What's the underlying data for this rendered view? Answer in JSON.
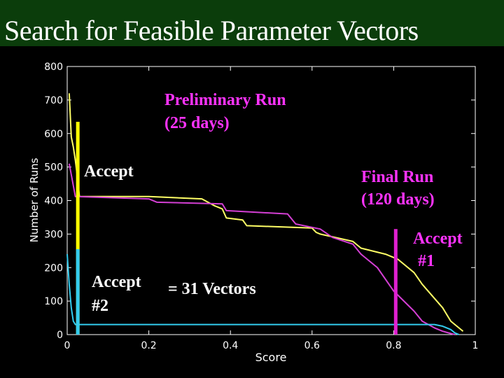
{
  "slide": {
    "title": "Search for Feasible Parameter Vectors"
  },
  "chart_data": {
    "type": "line",
    "xlabel": "Score",
    "ylabel": "Number of Runs",
    "xlim": [
      0,
      1
    ],
    "ylim": [
      0,
      800
    ],
    "x_ticks": [
      "0",
      "0.2",
      "0.4",
      "0.6",
      "0.8",
      "1"
    ],
    "y_ticks": [
      "0",
      "100",
      "200",
      "300",
      "400",
      "500",
      "600",
      "700",
      "800"
    ],
    "grid": false,
    "background": "#000000",
    "series": [
      {
        "color": "#ffff66",
        "x": [
          0.005,
          0.01,
          0.015,
          0.02,
          0.025,
          0.03,
          0.2,
          0.33,
          0.36,
          0.38,
          0.39,
          0.43,
          0.44,
          0.6,
          0.61,
          0.62,
          0.7,
          0.72,
          0.78,
          0.81,
          0.85,
          0.87,
          0.9,
          0.92,
          0.94,
          0.97
        ],
        "y": [
          720,
          590,
          560,
          520,
          470,
          412,
          412,
          405,
          385,
          375,
          348,
          342,
          325,
          318,
          305,
          300,
          278,
          258,
          240,
          225,
          185,
          150,
          108,
          80,
          40,
          10
        ]
      },
      {
        "color": "#d43fd4",
        "x": [
          0.005,
          0.02,
          0.2,
          0.22,
          0.38,
          0.39,
          0.54,
          0.56,
          0.62,
          0.65,
          0.7,
          0.72,
          0.76,
          0.8,
          0.85,
          0.87,
          0.9,
          0.92,
          0.95
        ],
        "y": [
          510,
          412,
          405,
          395,
          390,
          370,
          360,
          330,
          315,
          290,
          270,
          240,
          200,
          130,
          70,
          40,
          20,
          10,
          0
        ]
      },
      {
        "color": "#33ccee",
        "x": [
          0.0,
          0.005,
          0.01,
          0.015,
          0.02,
          0.9,
          0.92,
          0.94,
          0.95,
          0.96
        ],
        "y": [
          240,
          150,
          80,
          40,
          30,
          30,
          25,
          15,
          5,
          0
        ]
      }
    ],
    "threshold_bars": [
      {
        "label": "Accept",
        "x": 0.026,
        "y_top": 635,
        "color": "#ffff00"
      },
      {
        "label": "Accept #2",
        "x": 0.026,
        "y_top": 255,
        "color": "#33ccee"
      },
      {
        "label": "Accept #1",
        "x": 0.805,
        "y_top": 315,
        "color": "#e020d0"
      }
    ],
    "annotations": {
      "preliminary_1": "Preliminary Run",
      "preliminary_2": "(25 days)",
      "accept": "Accept",
      "final_1": "Final Run",
      "final_2": "(120 days)",
      "accept1_1": "Accept",
      "accept1_2": "#1",
      "accept2_1": "Accept",
      "accept2_2": "#2",
      "vectors": "= 31 Vectors"
    },
    "annotation_colors": {
      "preliminary": "#ff33ff",
      "accept": "#ffffff",
      "final": "#ff33ff",
      "accept1": "#ff33ff",
      "accept2": "#ffffff",
      "vectors": "#ffffff"
    }
  }
}
